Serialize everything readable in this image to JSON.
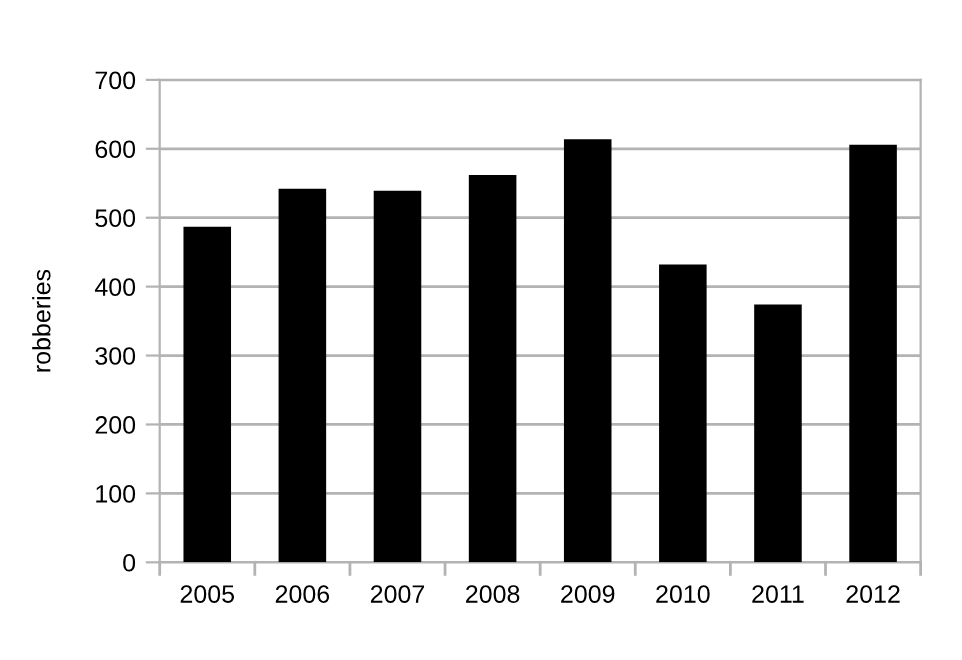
{
  "chart_data": {
    "type": "bar",
    "ylabel": "robberies",
    "categories": [
      "2005",
      "2006",
      "2007",
      "2008",
      "2009",
      "2010",
      "2011",
      "2012"
    ],
    "values": [
      487,
      542,
      539,
      562,
      614,
      432,
      374,
      606
    ],
    "color": "#000000",
    "ylim": [
      0,
      700
    ],
    "yticks": [
      0,
      100,
      200,
      300,
      400,
      500,
      600,
      700
    ],
    "grid": "y",
    "legend": false
  }
}
